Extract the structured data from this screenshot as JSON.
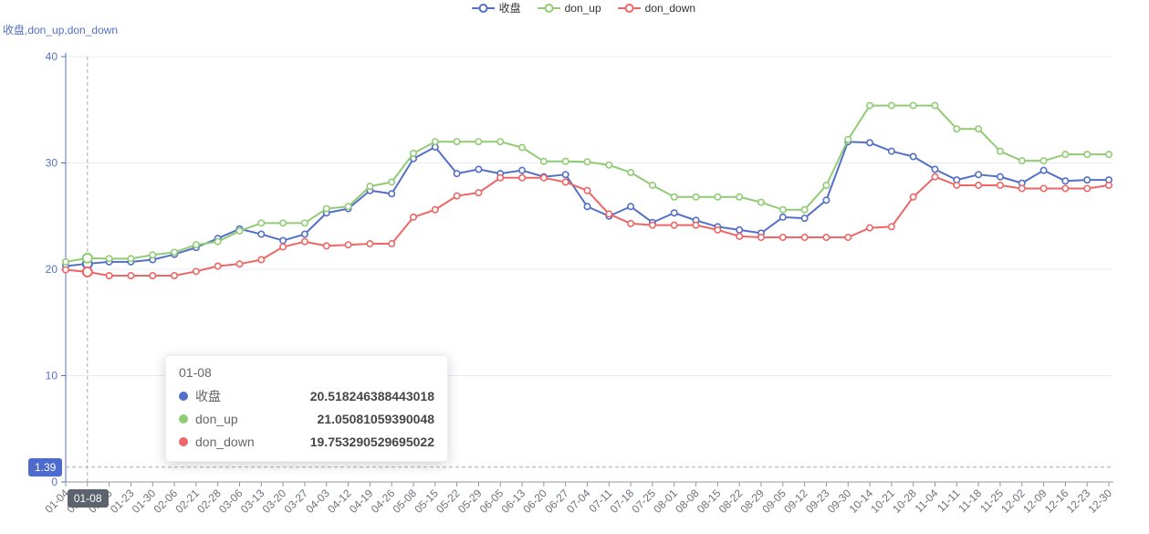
{
  "y_axis_name": "收盘,don_up,don_down",
  "legend": {
    "items": [
      {
        "label": "收盘",
        "color": "#5470C6"
      },
      {
        "label": "don_up",
        "color": "#91CC75"
      },
      {
        "label": "don_down",
        "color": "#EE6666"
      }
    ]
  },
  "tooltip": {
    "title": "01-08",
    "rows": [
      {
        "name": "收盘",
        "color": "#5470C6",
        "value": "20.518246388443018"
      },
      {
        "name": "don_up",
        "color": "#91CC75",
        "value": "21.05081059390048"
      },
      {
        "name": "don_down",
        "color": "#EE6666",
        "value": "19.753290529695022"
      }
    ]
  },
  "axis_pointer": {
    "x_label": "01-08",
    "x_index": 1,
    "y_label": "1.39",
    "y_value": 1.39,
    "x_badge_color": "#5d636c",
    "y_badge_color": "#4d6bce"
  },
  "chart_data": {
    "type": "line",
    "title": "",
    "xlabel": "",
    "ylabel": "收盘,don_up,don_down",
    "ylim": [
      0,
      40
    ],
    "y_ticks": [
      0,
      10,
      20,
      30,
      40
    ],
    "grid": true,
    "legend_position": "top-center",
    "highlight_index": 1,
    "x": [
      "01-04",
      "01-08",
      "01-16",
      "01-23",
      "01-30",
      "02-06",
      "02-21",
      "02-28",
      "03-06",
      "03-13",
      "03-20",
      "03-27",
      "04-03",
      "04-12",
      "04-19",
      "04-26",
      "05-08",
      "05-15",
      "05-22",
      "05-29",
      "06-05",
      "06-13",
      "06-20",
      "06-27",
      "07-04",
      "07-11",
      "07-18",
      "07-25",
      "08-01",
      "08-08",
      "08-15",
      "08-22",
      "08-29",
      "09-05",
      "09-12",
      "09-23",
      "09-30",
      "10-14",
      "10-21",
      "10-28",
      "11-04",
      "11-11",
      "11-18",
      "11-25",
      "12-02",
      "12-09",
      "12-16",
      "12-23",
      "12-30"
    ],
    "series": [
      {
        "name": "收盘",
        "color": "#5470C6",
        "values": [
          20.3,
          20.52,
          20.7,
          20.7,
          20.9,
          21.4,
          22.05,
          22.9,
          23.8,
          23.3,
          22.7,
          23.3,
          25.3,
          25.7,
          27.4,
          27.1,
          30.4,
          31.5,
          29.0,
          29.4,
          29.0,
          29.3,
          28.7,
          28.9,
          25.9,
          25.0,
          25.9,
          24.4,
          25.3,
          24.6,
          24.0,
          23.7,
          23.4,
          24.9,
          24.8,
          26.5,
          32.0,
          31.9,
          31.1,
          30.6,
          29.4,
          28.4,
          28.9,
          28.7,
          28.1,
          29.3,
          28.3,
          28.4,
          28.4
        ]
      },
      {
        "name": "don_up",
        "color": "#91CC75",
        "values": [
          20.7,
          21.05,
          21.0,
          21.0,
          21.35,
          21.6,
          22.3,
          22.6,
          23.6,
          24.35,
          24.35,
          24.35,
          25.7,
          25.9,
          27.8,
          28.2,
          30.9,
          32.0,
          32.0,
          32.0,
          32.0,
          31.45,
          30.15,
          30.15,
          30.1,
          29.8,
          29.1,
          27.9,
          26.8,
          26.8,
          26.8,
          26.8,
          26.3,
          25.6,
          25.6,
          27.9,
          32.2,
          35.4,
          35.4,
          35.4,
          35.4,
          33.2,
          33.2,
          31.1,
          30.2,
          30.2,
          30.8,
          30.8,
          30.8
        ]
      },
      {
        "name": "don_down",
        "color": "#EE6666",
        "values": [
          19.95,
          19.75,
          19.4,
          19.4,
          19.4,
          19.4,
          19.8,
          20.3,
          20.5,
          20.9,
          22.1,
          22.6,
          22.2,
          22.3,
          22.4,
          22.4,
          24.9,
          25.6,
          26.9,
          27.2,
          28.6,
          28.6,
          28.6,
          28.2,
          27.4,
          25.2,
          24.3,
          24.15,
          24.15,
          24.15,
          23.7,
          23.1,
          23.0,
          23.0,
          23.0,
          23.0,
          23.0,
          23.9,
          24.0,
          26.8,
          28.7,
          27.9,
          27.9,
          27.9,
          27.6,
          27.6,
          27.6,
          27.6,
          27.9
        ]
      }
    ]
  }
}
